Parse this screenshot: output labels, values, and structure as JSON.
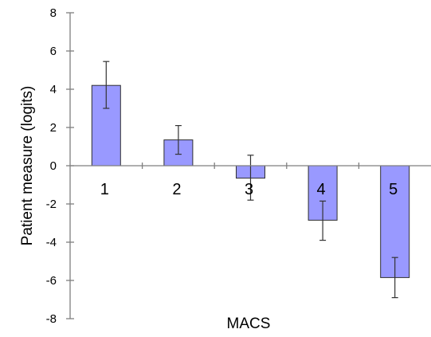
{
  "chart_data": {
    "type": "bar",
    "categories": [
      "1",
      "2",
      "3",
      "4",
      "5"
    ],
    "values": [
      4.2,
      1.35,
      -0.65,
      -2.85,
      -5.85
    ],
    "error_low": [
      3.0,
      0.6,
      -1.8,
      -3.9,
      -6.9
    ],
    "error_high": [
      5.45,
      2.1,
      0.55,
      -1.85,
      -4.8
    ],
    "xlabel": "MACS",
    "ylabel": "Patient measure (logits)",
    "ylim": [
      -8,
      8
    ],
    "yticks": [
      -8,
      -6,
      -4,
      -2,
      0,
      2,
      4,
      6,
      8
    ],
    "grid": false,
    "bar_color": "#9999ff"
  }
}
